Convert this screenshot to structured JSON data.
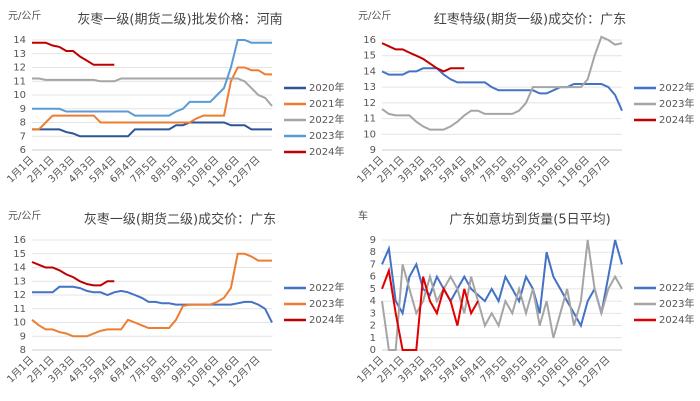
{
  "chart_data": [
    {
      "type": "line",
      "title": "灰枣一级(期货二级)批发价格：河南",
      "unit": "元/公斤",
      "categories": [
        "1月1日",
        null,
        null,
        "2月1日",
        null,
        null,
        "3月3日",
        null,
        null,
        "4月3日",
        null,
        null,
        "5月4日",
        null,
        null,
        "6月4日",
        null,
        null,
        "7月5日",
        null,
        null,
        "8月5日",
        null,
        null,
        "9月5日",
        null,
        null,
        "10月6日",
        null,
        null,
        "11月6日",
        null,
        null,
        "12月7日",
        null,
        null
      ],
      "ylim": [
        6,
        14
      ],
      "yticks": [
        6,
        7,
        8,
        9,
        10,
        11,
        12,
        13,
        14
      ],
      "grid": true,
      "series": [
        {
          "name": "2020年",
          "color": "#2f5597",
          "values": [
            7.5,
            7.5,
            7.5,
            7.5,
            7.5,
            7.3,
            7.2,
            7.0,
            7.0,
            7.0,
            7.0,
            7.0,
            7.0,
            7.0,
            7.0,
            7.5,
            7.5,
            7.5,
            7.5,
            7.5,
            7.5,
            7.8,
            7.8,
            8.0,
            8.0,
            8.0,
            8.0,
            8.0,
            8.0,
            7.8,
            7.8,
            7.8,
            7.5,
            7.5,
            7.5,
            7.5
          ]
        },
        {
          "name": "2021年",
          "color": "#ed7d31",
          "values": [
            7.5,
            7.5,
            8.0,
            8.5,
            8.5,
            8.5,
            8.5,
            8.5,
            8.5,
            8.5,
            8.0,
            8.0,
            8.0,
            8.0,
            8.0,
            8.0,
            8.0,
            8.0,
            8.0,
            8.0,
            8.0,
            8.0,
            8.0,
            8.0,
            8.3,
            8.5,
            8.5,
            8.5,
            8.5,
            11.0,
            12.0,
            12.0,
            11.8,
            11.8,
            11.5,
            11.5
          ]
        },
        {
          "name": "2022年",
          "color": "#a5a5a5",
          "values": [
            11.2,
            11.2,
            11.1,
            11.1,
            11.1,
            11.1,
            11.1,
            11.1,
            11.1,
            11.1,
            11.0,
            11.0,
            11.0,
            11.2,
            11.2,
            11.2,
            11.2,
            11.2,
            11.2,
            11.2,
            11.2,
            11.2,
            11.2,
            11.2,
            11.2,
            11.2,
            11.2,
            11.2,
            11.2,
            11.2,
            11.2,
            11.0,
            10.5,
            10.0,
            9.8,
            9.2
          ]
        },
        {
          "name": "2023年",
          "color": "#5b9bd5",
          "values": [
            9.0,
            9.0,
            9.0,
            9.0,
            9.0,
            8.8,
            8.8,
            8.8,
            8.8,
            8.8,
            8.8,
            8.8,
            8.8,
            8.8,
            8.8,
            8.5,
            8.5,
            8.5,
            8.5,
            8.5,
            8.5,
            8.8,
            9.0,
            9.5,
            9.5,
            9.5,
            9.5,
            10.0,
            10.5,
            12.0,
            14.0,
            14.0,
            13.8,
            13.8,
            13.8,
            13.8
          ]
        },
        {
          "name": "2024年",
          "color": "#c00000",
          "values": [
            13.8,
            13.8,
            13.8,
            13.6,
            13.5,
            13.2,
            13.2,
            12.8,
            12.5,
            12.2,
            12.2,
            12.2,
            12.2,
            null,
            null,
            null,
            null,
            null,
            null,
            null,
            null,
            null,
            null,
            null,
            null,
            null,
            null,
            null,
            null,
            null,
            null,
            null,
            null,
            null,
            null,
            null
          ]
        }
      ]
    },
    {
      "type": "line",
      "title": "红枣特级(期货一级)成交价：广东",
      "unit": "元/公斤",
      "categories": [
        "1月1日",
        null,
        null,
        "2月1日",
        null,
        null,
        "3月3日",
        null,
        null,
        "4月3日",
        null,
        null,
        "5月4日",
        null,
        null,
        "6月4日",
        null,
        null,
        "7月5日",
        null,
        null,
        "8月5日",
        null,
        null,
        "9月5日",
        null,
        null,
        "10月6日",
        null,
        null,
        "11月6日",
        null,
        null,
        "12月7日",
        null,
        null
      ],
      "ylim": [
        9,
        16
      ],
      "yticks": [
        9,
        10,
        11,
        12,
        13,
        14,
        15,
        16
      ],
      "grid": true,
      "series": [
        {
          "name": "2022年",
          "color": "#4472c4",
          "values": [
            14.0,
            13.8,
            13.8,
            13.8,
            14.0,
            14.0,
            14.2,
            14.2,
            14.2,
            13.8,
            13.5,
            13.3,
            13.3,
            13.3,
            13.3,
            13.3,
            13.0,
            12.8,
            12.8,
            12.8,
            12.8,
            12.8,
            12.8,
            12.6,
            12.6,
            12.8,
            13.0,
            13.0,
            13.2,
            13.2,
            13.2,
            13.2,
            13.2,
            13.0,
            12.5,
            11.5
          ]
        },
        {
          "name": "2023年",
          "color": "#a5a5a5",
          "values": [
            11.6,
            11.3,
            11.2,
            11.2,
            11.2,
            10.8,
            10.5,
            10.3,
            10.3,
            10.3,
            10.5,
            10.8,
            11.2,
            11.5,
            11.5,
            11.3,
            11.3,
            11.3,
            11.3,
            11.3,
            11.5,
            12.0,
            13.0,
            13.0,
            13.0,
            13.0,
            13.0,
            13.0,
            13.0,
            13.0,
            13.5,
            15.0,
            16.2,
            16.0,
            15.7,
            15.8
          ]
        },
        {
          "name": "2024年",
          "color": "#c00000",
          "values": [
            15.8,
            15.6,
            15.4,
            15.4,
            15.2,
            15.0,
            14.8,
            14.5,
            14.2,
            14.0,
            14.2,
            14.2,
            14.2,
            null,
            null,
            null,
            null,
            null,
            null,
            null,
            null,
            null,
            null,
            null,
            null,
            null,
            null,
            null,
            null,
            null,
            null,
            null,
            null,
            null,
            null,
            null
          ]
        }
      ]
    },
    {
      "type": "line",
      "title": "灰枣一级(期货二级)成交价：广东",
      "unit": "元/公斤",
      "categories": [
        "1月1日",
        null,
        null,
        "2月1日",
        null,
        null,
        "3月3日",
        null,
        null,
        "4月3日",
        null,
        null,
        "5月4日",
        null,
        null,
        "6月4日",
        null,
        null,
        "7月5日",
        null,
        null,
        "8月5日",
        null,
        null,
        "9月5日",
        null,
        null,
        "10月6日",
        null,
        null,
        "11月6日",
        null,
        null,
        "12月7日",
        null,
        null
      ],
      "ylim": [
        8,
        16
      ],
      "yticks": [
        8,
        9,
        10,
        11,
        12,
        13,
        14,
        15,
        16
      ],
      "grid": true,
      "series": [
        {
          "name": "2022年",
          "color": "#4472c4",
          "values": [
            12.2,
            12.2,
            12.2,
            12.2,
            12.6,
            12.6,
            12.6,
            12.5,
            12.3,
            12.2,
            12.2,
            12.0,
            12.2,
            12.3,
            12.2,
            12.0,
            11.8,
            11.5,
            11.5,
            11.4,
            11.4,
            11.3,
            11.3,
            11.3,
            11.3,
            11.3,
            11.3,
            11.3,
            11.3,
            11.3,
            11.4,
            11.5,
            11.5,
            11.3,
            11.0,
            10.0
          ]
        },
        {
          "name": "2023年",
          "color": "#ed7d31",
          "values": [
            10.2,
            9.8,
            9.5,
            9.5,
            9.3,
            9.2,
            9.0,
            9.0,
            9.0,
            9.2,
            9.4,
            9.5,
            9.5,
            9.5,
            10.2,
            10.0,
            9.8,
            9.6,
            9.6,
            9.6,
            9.6,
            10.2,
            11.2,
            11.3,
            11.3,
            11.3,
            11.3,
            11.5,
            11.8,
            12.5,
            15.0,
            15.0,
            14.8,
            14.5,
            14.5,
            14.5
          ]
        },
        {
          "name": "2024年",
          "color": "#c00000",
          "values": [
            14.4,
            14.2,
            14.0,
            14.0,
            13.8,
            13.5,
            13.3,
            13.0,
            12.8,
            12.7,
            12.7,
            13.0,
            13.0,
            null,
            null,
            null,
            null,
            null,
            null,
            null,
            null,
            null,
            null,
            null,
            null,
            null,
            null,
            null,
            null,
            null,
            null,
            null,
            null,
            null,
            null,
            null
          ]
        }
      ]
    },
    {
      "type": "line",
      "title": "广东如意坊到货量(5日平均)",
      "unit": "车",
      "categories": [
        "1月1日",
        null,
        null,
        "2月1日",
        null,
        null,
        "3月3日",
        null,
        null,
        "4月3日",
        null,
        null,
        "5月4日",
        null,
        null,
        "6月4日",
        null,
        null,
        "7月5日",
        null,
        null,
        "8月5日",
        null,
        null,
        "9月5日",
        null,
        null,
        "10月6日",
        null,
        null,
        "11月6日",
        null,
        null,
        "12月7日",
        null,
        null
      ],
      "ylim": [
        0,
        9
      ],
      "yticks": [
        0,
        1,
        2,
        3,
        4,
        5,
        6,
        7,
        8,
        9
      ],
      "grid": true,
      "series": [
        {
          "name": "2022年",
          "color": "#4472c4",
          "values": [
            7,
            8.3,
            4,
            3,
            6,
            7,
            5,
            4.5,
            6,
            5,
            4,
            5,
            6,
            5,
            4.5,
            4,
            5,
            4,
            6,
            5,
            4,
            6,
            5,
            3,
            8,
            6,
            5,
            4,
            3,
            2,
            4,
            5,
            3,
            6,
            9,
            7
          ]
        },
        {
          "name": "2023年",
          "color": "#a5a5a5",
          "values": [
            4,
            0,
            0,
            7,
            5,
            3,
            4,
            6,
            4,
            5,
            6,
            5,
            3,
            6,
            4,
            2,
            3,
            2,
            4,
            3,
            5,
            3,
            5,
            2,
            4,
            1,
            3,
            5,
            2,
            4,
            9,
            5,
            3,
            5,
            6,
            5
          ]
        },
        {
          "name": "2024年",
          "color": "#e00000",
          "values": [
            5,
            6.5,
            3,
            0,
            0,
            0,
            6,
            4,
            3,
            5,
            4,
            2,
            5,
            3,
            4,
            null,
            null,
            null,
            null,
            null,
            null,
            null,
            null,
            null,
            null,
            null,
            null,
            null,
            null,
            null,
            null,
            null,
            null,
            null,
            null,
            null
          ]
        }
      ]
    }
  ]
}
